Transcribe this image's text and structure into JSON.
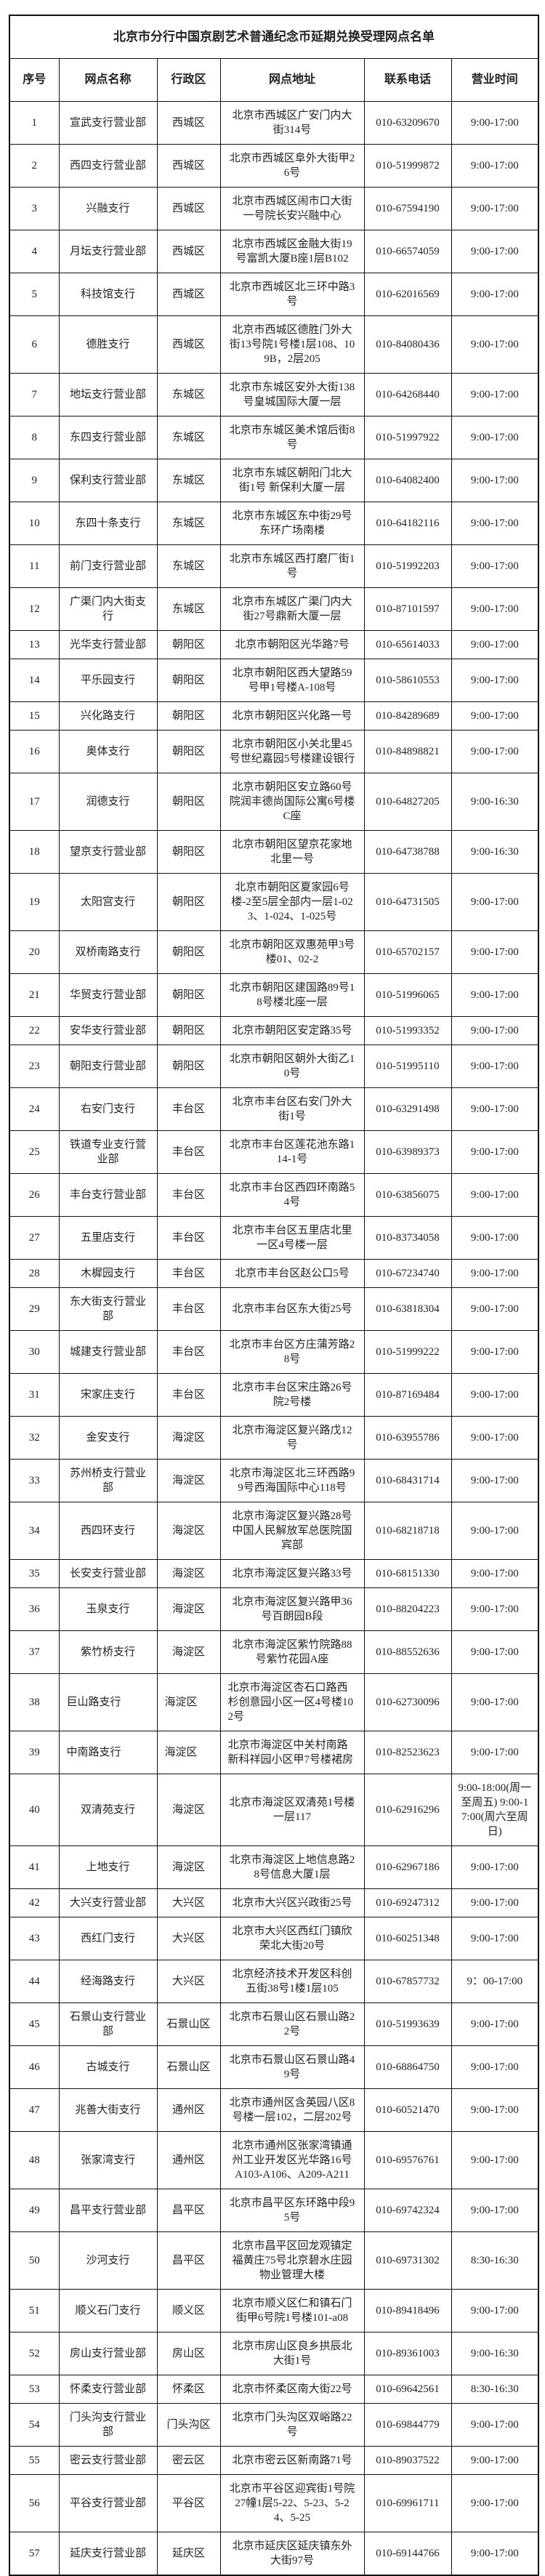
{
  "title": "北京市分行中国京剧艺术普通纪念币延期兑换受理网点名单",
  "headers": [
    "序号",
    "网点名称",
    "行政区",
    "网点地址",
    "联系电话",
    "营业时间"
  ],
  "rows": [
    [
      "1",
      "宣武支行营业部",
      "西城区",
      "北京市西城区广安门内大街314号",
      "010-63209670",
      "9:00-17:00"
    ],
    [
      "2",
      "西四支行营业部",
      "西城区",
      "北京市西城区阜外大街甲26号",
      "010-51999872",
      "9:00-17:00"
    ],
    [
      "3",
      "兴融支行",
      "西城区",
      "北京市西城区闹市口大街一号院长安兴融中心",
      "010-67594190",
      "9:00-17:00"
    ],
    [
      "4",
      "月坛支行营业部",
      "西城区",
      "北京市西城区金融大街19号富凯大厦B座1层B102",
      "010-66574059",
      "9:00-17:00"
    ],
    [
      "5",
      "科技馆支行",
      "西城区",
      "北京市西城区北三环中路3号",
      "010-62016569",
      "9:00-17:00"
    ],
    [
      "6",
      "德胜支行",
      "西城区",
      "北京市西城区德胜门外大街13号院1号楼1层108、109B，2层205",
      "010-84080436",
      "9:00-17:00"
    ],
    [
      "7",
      "地坛支行营业部",
      "东城区",
      "北京市东城区安外大街138号皇城国际大厦一层",
      "010-64268440",
      "9:00-17:00"
    ],
    [
      "8",
      "东四支行营业部",
      "东城区",
      "北京市东城区美术馆后街8号",
      "010-51997922",
      "9:00-17:00"
    ],
    [
      "9",
      "保利支行营业部",
      "东城区",
      "北京市东城区朝阳门北大街1号 新保利大厦一层",
      "010-64082400",
      "9:00-17:00"
    ],
    [
      "10",
      "东四十条支行",
      "东城区",
      "北京市东城区东中街29号东环广场南楼",
      "010-64182116",
      "9:00-17:00"
    ],
    [
      "11",
      "前门支行营业部",
      "东城区",
      "北京市东城区西打磨厂街1号",
      "010-51992203",
      "9:00-17:00"
    ],
    [
      "12",
      "广渠门内大街支行",
      "东城区",
      "北京市东城区广渠门内大街27号鼎新大厦一层",
      "010-87101597",
      "9:00-17:00"
    ],
    [
      "13",
      "光华支行营业部",
      "朝阳区",
      "北京市朝阳区光华路7号",
      "010-65614033",
      "9:00-17:00"
    ],
    [
      "14",
      "平乐园支行",
      "朝阳区",
      "北京市朝阳区西大望路59号甲1号楼A-108号",
      "010-58610553",
      "9:00-17:00"
    ],
    [
      "15",
      "兴化路支行",
      "朝阳区",
      "北京市朝阳区兴化路一号",
      "010-84289689",
      "9:00-17:00"
    ],
    [
      "16",
      "奥体支行",
      "朝阳区",
      "北京市朝阳区小关北里45号世纪嘉园5号楼建设银行",
      "010-84898821",
      "9:00-17:00"
    ],
    [
      "17",
      "润德支行",
      "朝阳区",
      "北京市朝阳区安立路60号院润丰德尚国际公寓6号楼C座",
      "010-64827205",
      "9:00-16:30"
    ],
    [
      "18",
      "望京支行营业部",
      "朝阳区",
      "北京市朝阳区望京花家地北里一号",
      "010-64738788",
      "9:00-16:30"
    ],
    [
      "19",
      "太阳宫支行",
      "朝阳区",
      "北京市朝阳区夏家园6号楼-2至5层全部内一层1-023、1-024、1-025号",
      "010-64731505",
      "9:00-17:00"
    ],
    [
      "20",
      "双桥南路支行",
      "朝阳区",
      "北京市朝阳区双惠苑甲3号楼01、02-2",
      "010-65702157",
      "9:00-17:00"
    ],
    [
      "21",
      "华贸支行营业部",
      "朝阳区",
      "北京市朝阳区建国路89号18号楼北座一层",
      "010-51996065",
      "9:00-17:00"
    ],
    [
      "22",
      "安华支行营业部",
      "朝阳区",
      "北京市朝阳区安定路35号",
      "010-51993352",
      "9:00-17:00"
    ],
    [
      "23",
      "朝阳支行营业部",
      "朝阳区",
      "北京市朝阳区朝外大街乙10号",
      "010-51995110",
      "9:00-17:00"
    ],
    [
      "24",
      "右安门支行",
      "丰台区",
      "北京市丰台区右安门外大街1号",
      "010-63291498",
      "9:00-17:00"
    ],
    [
      "25",
      "铁道专业支行营业部",
      "丰台区",
      "北京市丰台区莲花池东路114-1号",
      "010-63989373",
      "9:00-17:00"
    ],
    [
      "26",
      "丰台支行营业部",
      "丰台区",
      "北京市丰台区西四环南路54号",
      "010-63856075",
      "9:00-17:00"
    ],
    [
      "27",
      "五里店支行",
      "丰台区",
      "北京市丰台区五里店北里一区4号楼一层",
      "010-83734058",
      "9:00-17:00"
    ],
    [
      "28",
      "木樨园支行",
      "丰台区",
      "北京市丰台区赵公口5号",
      "010-67234740",
      "9:00-17:00"
    ],
    [
      "29",
      "东大街支行营业部",
      "丰台区",
      "北京市丰台区东大街25号",
      "010-63818304",
      "9:00-17:00"
    ],
    [
      "30",
      "城建支行营业部",
      "丰台区",
      "北京市丰台区方庄蒲芳路28号",
      "010-51999222",
      "9:00-17:00"
    ],
    [
      "31",
      "宋家庄支行",
      "丰台区",
      "北京市丰台区宋庄路26号院2号楼",
      "010-87169484",
      "9:00-17:00"
    ],
    [
      "32",
      "金安支行",
      "海淀区",
      "北京市海淀区复兴路戊12号",
      "010-63955786",
      "9:00-17:00"
    ],
    [
      "33",
      "苏州桥支行营业部",
      "海淀区",
      "北京市海淀区北三环西路99号西海国际中心118号",
      "010-68431714",
      "9:00-17:00"
    ],
    [
      "34",
      "西四环支行",
      "海淀区",
      "北京市海淀区复兴路28号中国人民解放军总医院国宾部",
      "010-68218718",
      "9:00-17:00"
    ],
    [
      "35",
      "长安支行营业部",
      "海淀区",
      "北京市海淀区复兴路33号",
      "010-68151330",
      "9:00-17:00"
    ],
    [
      "36",
      "玉泉支行",
      "海淀区",
      "北京市海淀区复兴路甲36号百朗园B段",
      "010-88204223",
      "9:00-17:00"
    ],
    [
      "37",
      "紫竹桥支行",
      "海淀区",
      "北京市海淀区紫竹院路88号紫竹花园A座",
      "010-88552636",
      "9:00-17:00"
    ],
    [
      "38",
      "巨山路支行",
      "海淀区",
      "北京市海淀区杏石口路西杉创意园小区一区4号楼102号",
      "010-62730096",
      "9:00-17:00"
    ],
    [
      "39",
      "中南路支行",
      "海淀区",
      "北京市海淀区中关村南路新科祥园小区甲7号楼裙房",
      "010-82523623",
      "9:00-17:00"
    ],
    [
      "40",
      "双清苑支行",
      "海淀区",
      "北京市海淀区双清苑1号楼一层117",
      "010-62916296",
      "9:00-18:00(周一至周五) 9:00-17:00(周六至周日)"
    ],
    [
      "41",
      "上地支行",
      "海淀区",
      "北京市海淀区上地信息路28号信息大厦1层",
      "010-62967186",
      "9:00-17:00"
    ],
    [
      "42",
      "大兴支行营业部",
      "大兴区",
      "北京市大兴区兴政街25号",
      "010-69247312",
      "9:00-17:00"
    ],
    [
      "43",
      "西红门支行",
      "大兴区",
      "北京市大兴区西红门镇欣荣北大街20号",
      "010-60251348",
      "9:00-17:00"
    ],
    [
      "44",
      "经海路支行",
      "大兴区",
      "北京经济技术开发区科创五街38号1楼1层105",
      "010-67857732",
      "9：00-17:00"
    ],
    [
      "45",
      "石景山支行营业部",
      "石景山区",
      "北京市石景山区石景山路22号",
      "010-51993639",
      "9:00-17:00"
    ],
    [
      "46",
      "古城支行",
      "石景山区",
      "北京市石景山区石景山路49号",
      "010-68864750",
      "9:00-17:00"
    ],
    [
      "47",
      "兆善大街支行",
      "通州区",
      "北京市通州区含英园八区8号楼一层102，二层202号",
      "010-60521470",
      "9:00-17:00"
    ],
    [
      "48",
      "张家湾支行",
      "通州区",
      "北京市通州区张家湾镇通州工业开发区光华路16号A103-A106、A209-A211",
      "010-69576761",
      "9:00-17:00"
    ],
    [
      "49",
      "昌平支行营业部",
      "昌平区",
      "北京市昌平区东环路中段95号",
      "010-69742324",
      "9:00-17:00"
    ],
    [
      "50",
      "沙河支行",
      "昌平区",
      "北京市昌平区回龙观镇定福黄庄75号北京碧水庄园物业管理大楼",
      "010-69731302",
      "8:30-16:30"
    ],
    [
      "51",
      "顺义石门支行",
      "顺义区",
      "北京市顺义区仁和镇石门街甲6号院1号楼101-a08",
      "010-89418496",
      "9:00-17:00"
    ],
    [
      "52",
      "房山支行营业部",
      "房山区",
      "北京市房山区良乡拱辰北大街1号",
      "010-89361003",
      "9:00-16:30"
    ],
    [
      "53",
      "怀柔支行营业部",
      "怀柔区",
      "北京市怀柔区南大街22号",
      "010-69642561",
      "8:30-16:30"
    ],
    [
      "54",
      "门头沟支行营业部",
      "门头沟区",
      "北京市门头沟区双峪路22号",
      "010-69844779",
      "9:00-17:00"
    ],
    [
      "55",
      "密云支行营业部",
      "密云区",
      "北京市密云区新南路71号",
      "010-89037522",
      "9:00-17:00"
    ],
    [
      "56",
      "平谷支行营业部",
      "平谷区",
      "北京市平谷区迎宾街1号院27幢1层5-22、5-23、5-24、5-25",
      "010-69961711",
      "9:00-17:00"
    ],
    [
      "57",
      "延庆支行营业部",
      "延庆区",
      "北京市延庆区延庆镇东外大街97号",
      "010-69144766",
      "9:00-17:00"
    ]
  ]
}
